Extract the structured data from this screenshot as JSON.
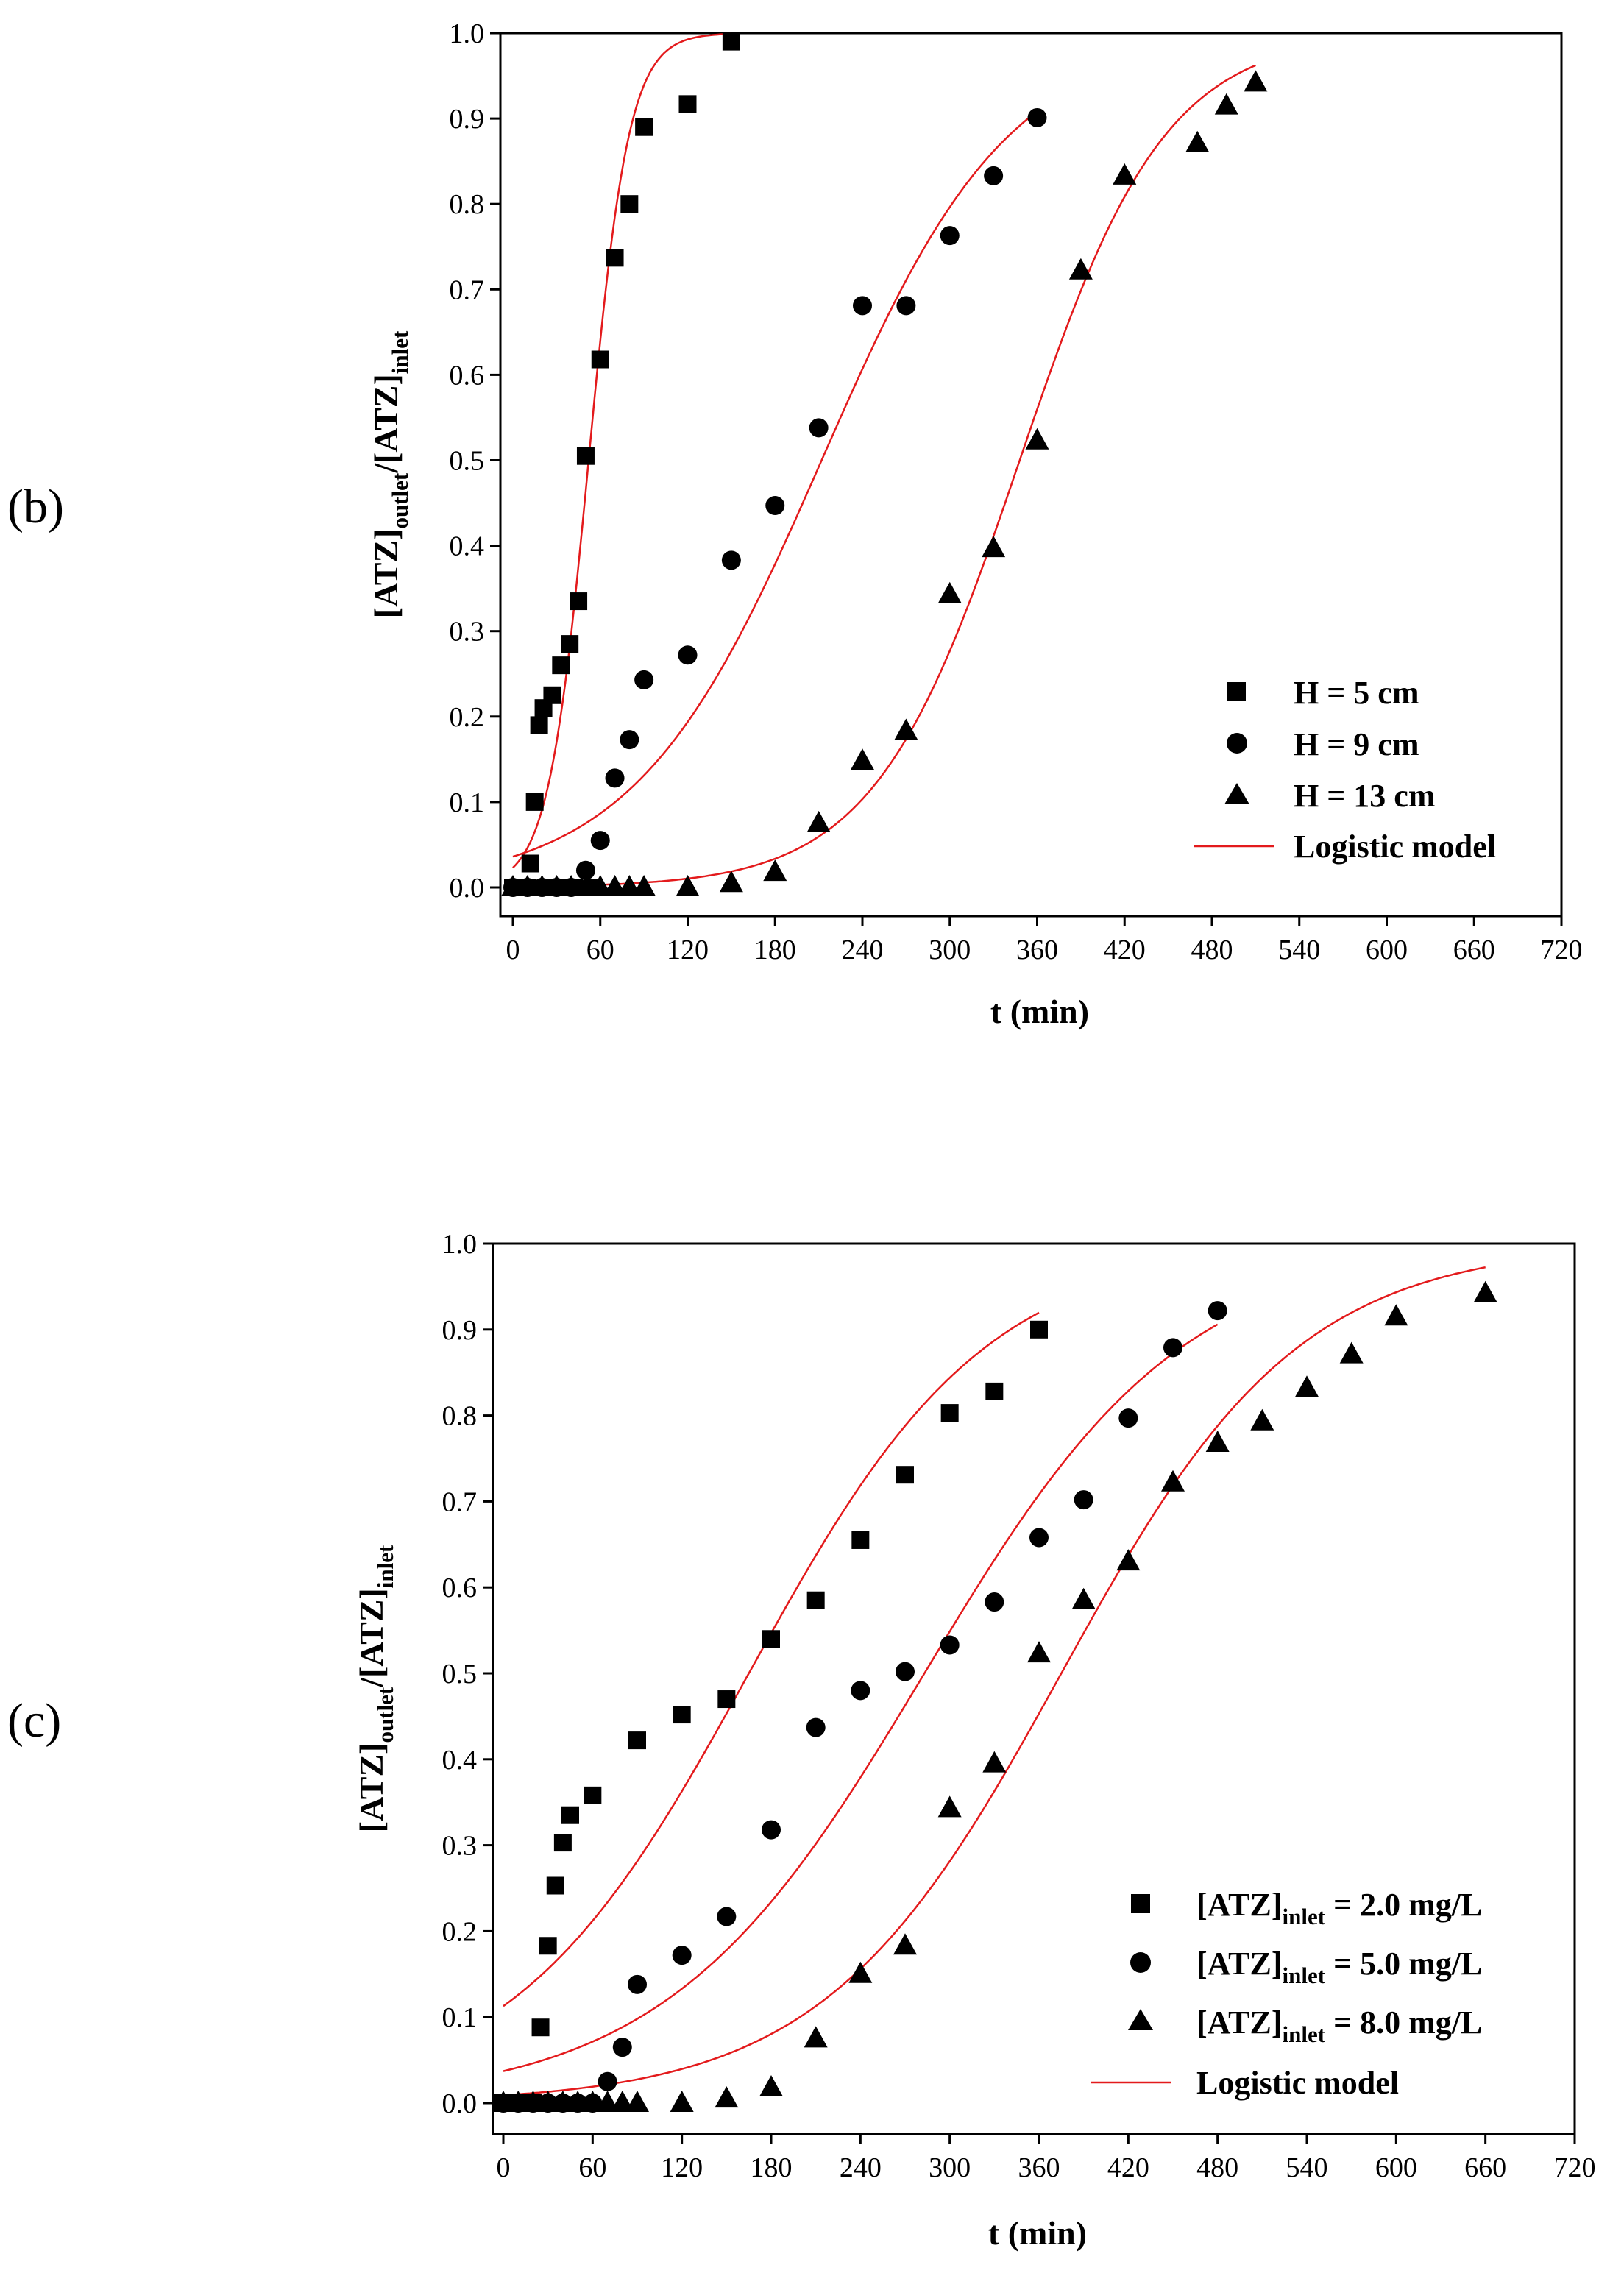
{
  "chart_data": [
    {
      "type": "scatter",
      "panel_label": "(b)",
      "title": "",
      "xlabel": "t (min)",
      "ylabel": {
        "main1": "[ATZ]",
        "sub1": "outlet",
        "main2": "/[ATZ]",
        "sub2": "inlet"
      },
      "xlim": [
        -10,
        720
      ],
      "ylim": [
        -0.02,
        1.0
      ],
      "xticks": [
        "0",
        "60",
        "120",
        "180",
        "240",
        "300",
        "360",
        "420",
        "480",
        "540",
        "600",
        "660",
        "720"
      ],
      "yticks": [
        "0.0",
        "0.1",
        "0.2",
        "0.3",
        "0.4",
        "0.5",
        "0.6",
        "0.7",
        "0.8",
        "0.9",
        "1.0"
      ],
      "legend_position": "bottom-right",
      "series": [
        {
          "name": "H = 5 cm",
          "marker": "square",
          "x": [
            0,
            5,
            10,
            12,
            15,
            18,
            21,
            24,
            27,
            30,
            33,
            36,
            39,
            42,
            45,
            50,
            55,
            60,
            70,
            80,
            90,
            120,
            150
          ],
          "y": [
            0.0,
            0.0,
            0.0,
            0.028,
            0.1,
            0.19,
            0.21,
            0.0,
            0.225,
            0.0,
            0.26,
            0.0,
            0.285,
            0.0,
            0.335,
            0.505,
            0.0,
            0.618,
            0.737,
            0.8,
            0.89,
            0.917,
            0.99
          ]
        },
        {
          "name": "H = 9 cm",
          "marker": "circle",
          "x": [
            0,
            10,
            20,
            30,
            40,
            50,
            60,
            70,
            80,
            90,
            120,
            150,
            180,
            210,
            240,
            270,
            300,
            330,
            360
          ],
          "y": [
            0.0,
            0.0,
            0.0,
            0.0,
            0.0,
            0.02,
            0.055,
            0.128,
            0.173,
            0.243,
            0.272,
            0.383,
            0.447,
            0.538,
            0.681,
            0.681,
            0.763,
            0.833,
            0.901
          ]
        },
        {
          "name": "H = 13 cm",
          "marker": "triangle",
          "x": [
            0,
            10,
            20,
            30,
            40,
            50,
            60,
            70,
            80,
            90,
            120,
            150,
            180,
            210,
            240,
            270,
            300,
            330,
            360,
            390,
            420,
            470,
            490,
            510
          ],
          "y": [
            0.0,
            0.0,
            0.0,
            0.0,
            0.0,
            0.0,
            0.0,
            0.0,
            0.0,
            0.0,
            0.0,
            0.005,
            0.018,
            0.075,
            0.148,
            0.183,
            0.343,
            0.397,
            0.523,
            0.722,
            0.833,
            0.871,
            0.915,
            0.942
          ]
        }
      ],
      "model": {
        "name": "Logistic model",
        "color": "#e31a1c",
        "curves": [
          {
            "t50": 52,
            "k": 0.072,
            "x_start": 0,
            "x_end": 150
          },
          {
            "t50": 212,
            "k": 0.0155,
            "x_start": 0,
            "x_end": 360
          },
          {
            "t50": 348,
            "k": 0.02,
            "x_start": 0,
            "x_end": 510
          }
        ]
      }
    },
    {
      "type": "scatter",
      "panel_label": "(c)",
      "title": "",
      "xlabel": "t (min)",
      "ylabel": {
        "main1": "[ATZ]",
        "sub1": "outlet",
        "main2": "/[ATZ]",
        "sub2": "inlet"
      },
      "xlim": [
        -10,
        720
      ],
      "ylim": [
        -0.02,
        1.0
      ],
      "xticks": [
        "0",
        "60",
        "120",
        "180",
        "240",
        "300",
        "360",
        "420",
        "480",
        "540",
        "600",
        "660",
        "720"
      ],
      "yticks": [
        "0.0",
        "0.1",
        "0.2",
        "0.3",
        "0.4",
        "0.5",
        "0.6",
        "0.7",
        "0.8",
        "0.9",
        "1.0"
      ],
      "legend_position": "bottom-right",
      "series": [
        {
          "name": "[ATZ]",
          "name_sub": "inlet",
          "name_rest": " = 2.0 mg/L",
          "marker": "square",
          "x": [
            0,
            5,
            10,
            15,
            20,
            25,
            30,
            35,
            40,
            45,
            60,
            90,
            120,
            150,
            180,
            210,
            240,
            270,
            300,
            330,
            360
          ],
          "y": [
            0.0,
            0.0,
            0.0,
            0.0,
            0.0,
            0.088,
            0.183,
            0.253,
            0.303,
            0.335,
            0.358,
            0.422,
            0.452,
            0.47,
            0.54,
            0.585,
            0.655,
            0.731,
            0.803,
            0.828,
            0.9
          ]
        },
        {
          "name": "[ATZ]",
          "name_sub": "inlet",
          "name_rest": " = 5.0 mg/L",
          "marker": "circle",
          "x": [
            0,
            10,
            20,
            30,
            40,
            50,
            60,
            70,
            80,
            90,
            120,
            150,
            180,
            210,
            240,
            270,
            300,
            330,
            360,
            390,
            420,
            450,
            480
          ],
          "y": [
            0.0,
            0.0,
            0.0,
            0.0,
            0.0,
            0.0,
            0.0,
            0.025,
            0.065,
            0.138,
            0.172,
            0.217,
            0.318,
            0.437,
            0.48,
            0.502,
            0.533,
            0.583,
            0.658,
            0.702,
            0.797,
            0.879,
            0.922
          ]
        },
        {
          "name": "[ATZ]",
          "name_sub": "inlet",
          "name_rest": " = 8.0 mg/L",
          "marker": "triangle",
          "x": [
            0,
            10,
            20,
            30,
            40,
            50,
            60,
            70,
            80,
            90,
            120,
            150,
            180,
            210,
            240,
            270,
            300,
            330,
            360,
            390,
            420,
            450,
            480,
            510,
            540,
            570,
            600,
            660
          ],
          "y": [
            0.0,
            0.0,
            0.0,
            0.0,
            0.0,
            0.0,
            0.0,
            0.0,
            0.0,
            0.0,
            0.0,
            0.005,
            0.018,
            0.075,
            0.15,
            0.183,
            0.343,
            0.395,
            0.523,
            0.585,
            0.63,
            0.722,
            0.768,
            0.793,
            0.832,
            0.871,
            0.915,
            0.942
          ]
        }
      ],
      "model": {
        "name": "Logistic model",
        "color": "#e31a1c",
        "curves": [
          {
            "t50": 165,
            "k": 0.0125,
            "x_start": 0,
            "x_end": 360
          },
          {
            "t50": 283,
            "k": 0.0115,
            "x_start": 0,
            "x_end": 480
          },
          {
            "t50": 375,
            "k": 0.0125,
            "x_start": 0,
            "x_end": 660
          }
        ]
      }
    }
  ]
}
